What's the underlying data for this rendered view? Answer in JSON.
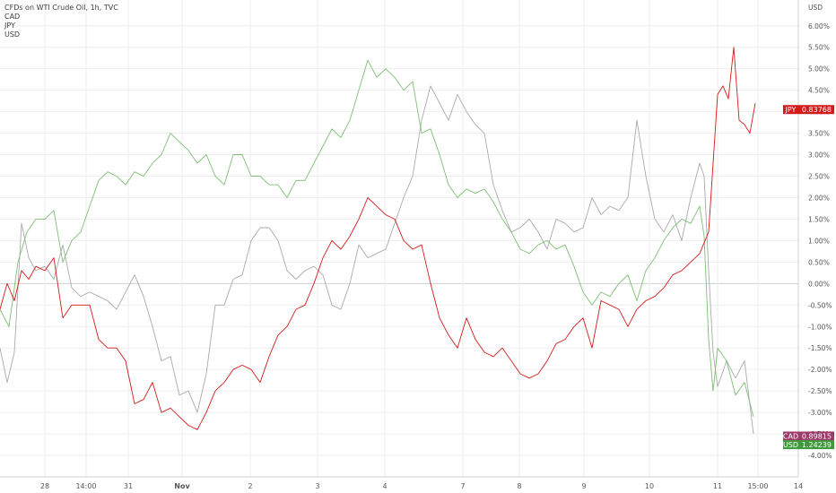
{
  "legend": {
    "title": "CFDs on WTI Crude Oil, 1h, TVC",
    "items": [
      "CAD",
      "JPY",
      "USD"
    ]
  },
  "colors": {
    "JPY": "#d41a1a",
    "USD": "#7dbf74",
    "CAD": "#a9a9ae",
    "grid": "#eeeeee",
    "zero": "#cfcfcf",
    "CAD_tag": "#9c3a6a",
    "USD_tag": "#3f9a3b",
    "JPY_tag": "#d41a1a"
  },
  "chart_data": {
    "type": "line",
    "axis_unit": "USD",
    "ylim": [
      -4.5,
      6.6
    ],
    "yticks": [
      "6.00%",
      "5.50%",
      "5.00%",
      "4.50%",
      "4.00%",
      "3.50%",
      "3.00%",
      "2.50%",
      "2.00%",
      "1.50%",
      "1.00%",
      "0.50%",
      "0.00%",
      "-0.50%",
      "-1.00%",
      "-1.50%",
      "-2.00%",
      "-2.50%",
      "-3.00%",
      "-3.50%",
      "-4.00%"
    ],
    "ytick_values": [
      6,
      5.5,
      5,
      4.5,
      4,
      3.5,
      3,
      2.5,
      2,
      1.5,
      1,
      0.5,
      0,
      -0.5,
      -1,
      -1.5,
      -2,
      -2.5,
      -3,
      -3.5,
      -4
    ],
    "xlim": [
      0,
      890
    ],
    "xticks": [
      {
        "label": "28",
        "pos": 50,
        "bold": false
      },
      {
        "label": "14:00",
        "pos": 96,
        "bold": false
      },
      {
        "label": "31",
        "pos": 143,
        "bold": false
      },
      {
        "label": "Nov",
        "pos": 203,
        "bold": true
      },
      {
        "label": "2",
        "pos": 279,
        "bold": false
      },
      {
        "label": "3",
        "pos": 354,
        "bold": false
      },
      {
        "label": "4",
        "pos": 429,
        "bold": false
      },
      {
        "label": "7",
        "pos": 516,
        "bold": false
      },
      {
        "label": "8",
        "pos": 579,
        "bold": false
      },
      {
        "label": "9",
        "pos": 651,
        "bold": false
      },
      {
        "label": "10",
        "pos": 724,
        "bold": false
      },
      {
        "label": "11",
        "pos": 800,
        "bold": false
      },
      {
        "label": "15:00",
        "pos": 845,
        "bold": false
      },
      {
        "label": "14",
        "pos": 890,
        "bold": false
      }
    ],
    "series": [
      {
        "name": "JPY",
        "x": [
          0,
          8,
          16,
          24,
          32,
          40,
          50,
          60,
          70,
          80,
          90,
          100,
          110,
          120,
          130,
          140,
          150,
          160,
          170,
          180,
          190,
          200,
          210,
          220,
          230,
          240,
          250,
          260,
          270,
          280,
          290,
          300,
          310,
          320,
          330,
          340,
          350,
          360,
          370,
          380,
          390,
          400,
          410,
          420,
          430,
          440,
          450,
          460,
          470,
          480,
          490,
          500,
          510,
          520,
          530,
          540,
          550,
          560,
          570,
          580,
          590,
          600,
          610,
          620,
          630,
          640,
          650,
          660,
          670,
          680,
          690,
          700,
          710,
          720,
          730,
          740,
          750,
          760,
          770,
          780,
          790,
          800,
          806,
          812,
          818,
          824,
          830,
          836,
          842
        ],
        "y": [
          -0.6,
          0.0,
          -0.4,
          0.3,
          0.1,
          0.4,
          0.3,
          0.6,
          -0.8,
          -0.5,
          -0.5,
          -0.5,
          -1.3,
          -1.5,
          -1.5,
          -1.8,
          -2.8,
          -2.7,
          -2.3,
          -3.0,
          -2.9,
          -3.1,
          -3.3,
          -3.4,
          -3.0,
          -2.5,
          -2.3,
          -2.0,
          -1.9,
          -2.0,
          -2.3,
          -1.7,
          -1.2,
          -1.0,
          -0.6,
          -0.5,
          0.0,
          0.6,
          1.0,
          0.8,
          1.1,
          1.5,
          2.0,
          1.8,
          1.6,
          1.5,
          1.0,
          0.8,
          0.9,
          0.0,
          -0.8,
          -1.2,
          -1.5,
          -0.8,
          -1.3,
          -1.6,
          -1.7,
          -1.5,
          -1.8,
          -2.1,
          -2.2,
          -2.1,
          -1.8,
          -1.4,
          -1.3,
          -1.0,
          -0.8,
          -1.5,
          -0.4,
          -0.5,
          -0.6,
          -1.0,
          -0.6,
          -0.4,
          -0.3,
          -0.1,
          0.2,
          0.3,
          0.5,
          0.7,
          1.2,
          4.4,
          4.6,
          4.3,
          5.5,
          3.8,
          3.7,
          3.5,
          4.2
        ]
      },
      {
        "name": "USD",
        "x": [
          0,
          10,
          20,
          30,
          40,
          50,
          60,
          70,
          80,
          90,
          100,
          110,
          120,
          130,
          140,
          150,
          160,
          170,
          180,
          190,
          200,
          210,
          220,
          230,
          240,
          250,
          260,
          270,
          280,
          290,
          300,
          310,
          320,
          330,
          340,
          350,
          360,
          370,
          380,
          390,
          400,
          410,
          420,
          430,
          440,
          450,
          460,
          470,
          480,
          490,
          500,
          510,
          520,
          530,
          540,
          550,
          560,
          570,
          580,
          590,
          600,
          610,
          620,
          630,
          640,
          650,
          660,
          670,
          680,
          690,
          700,
          710,
          720,
          730,
          740,
          750,
          760,
          770,
          780,
          785,
          790,
          795,
          800,
          810,
          820,
          830,
          840
        ],
        "y": [
          -0.6,
          -1.0,
          0.5,
          1.2,
          1.5,
          1.5,
          1.7,
          0.5,
          1.0,
          1.2,
          1.8,
          2.4,
          2.6,
          2.5,
          2.3,
          2.6,
          2.5,
          2.8,
          3.0,
          3.5,
          3.3,
          3.1,
          2.8,
          3.0,
          2.5,
          2.3,
          3.0,
          3.0,
          2.5,
          2.5,
          2.3,
          2.3,
          2.0,
          2.4,
          2.4,
          2.8,
          3.2,
          3.6,
          3.4,
          3.8,
          4.5,
          5.2,
          4.8,
          5.0,
          4.8,
          4.5,
          4.7,
          3.5,
          3.6,
          3.0,
          2.3,
          2.0,
          2.2,
          2.1,
          2.2,
          1.9,
          1.5,
          1.2,
          0.8,
          0.7,
          0.9,
          1.0,
          0.8,
          0.9,
          0.4,
          -0.2,
          -0.5,
          -0.2,
          -0.3,
          0.0,
          0.2,
          -0.4,
          0.3,
          0.6,
          1.0,
          1.3,
          1.5,
          1.4,
          1.8,
          1.1,
          -1.3,
          -2.5,
          -1.5,
          -1.8,
          -2.6,
          -2.3,
          -3.1
        ]
      },
      {
        "name": "CAD",
        "x": [
          0,
          8,
          16,
          24,
          32,
          40,
          50,
          60,
          70,
          80,
          90,
          100,
          110,
          120,
          130,
          140,
          150,
          160,
          170,
          180,
          190,
          200,
          210,
          220,
          230,
          240,
          250,
          260,
          270,
          280,
          290,
          300,
          310,
          320,
          330,
          340,
          350,
          360,
          370,
          380,
          390,
          400,
          410,
          420,
          430,
          440,
          450,
          460,
          470,
          480,
          490,
          500,
          510,
          520,
          530,
          540,
          550,
          560,
          570,
          580,
          590,
          600,
          610,
          620,
          630,
          640,
          650,
          660,
          670,
          680,
          690,
          700,
          710,
          720,
          730,
          740,
          750,
          760,
          770,
          780,
          785,
          790,
          795,
          800,
          810,
          820,
          830,
          840
        ],
        "y": [
          -1.5,
          -2.3,
          -1.6,
          1.4,
          0.6,
          0.3,
          0.4,
          0.1,
          0.9,
          -0.1,
          -0.3,
          -0.2,
          -0.3,
          -0.4,
          -0.6,
          -0.2,
          0.2,
          -0.3,
          -1.0,
          -1.8,
          -1.7,
          -2.6,
          -2.5,
          -3.0,
          -2.1,
          -0.5,
          -0.5,
          0.1,
          0.2,
          1.0,
          1.3,
          1.3,
          1.0,
          0.3,
          0.1,
          0.3,
          0.4,
          0.2,
          -0.5,
          -0.6,
          0.0,
          0.9,
          0.6,
          0.7,
          0.8,
          1.4,
          2.0,
          2.5,
          3.8,
          4.6,
          4.2,
          3.8,
          4.4,
          4.0,
          3.7,
          3.5,
          2.3,
          1.7,
          1.2,
          1.3,
          1.5,
          1.2,
          0.8,
          1.5,
          1.4,
          1.2,
          1.3,
          2.0,
          1.6,
          1.8,
          1.7,
          2.0,
          3.8,
          2.5,
          1.5,
          1.2,
          1.6,
          1.0,
          2.0,
          2.8,
          2.5,
          0.3,
          -1.6,
          -2.4,
          -1.8,
          -2.2,
          -1.8,
          -3.5
        ]
      }
    ],
    "last_values": [
      {
        "name": "JPY",
        "label": "JPY",
        "value": "0.83768",
        "y": 4.05
      },
      {
        "name": "CAD",
        "label": "CAD",
        "value": "0.89815",
        "y": -3.55
      },
      {
        "name": "USD",
        "label": "USD",
        "value": "1.24239",
        "y": -3.75
      }
    ]
  }
}
